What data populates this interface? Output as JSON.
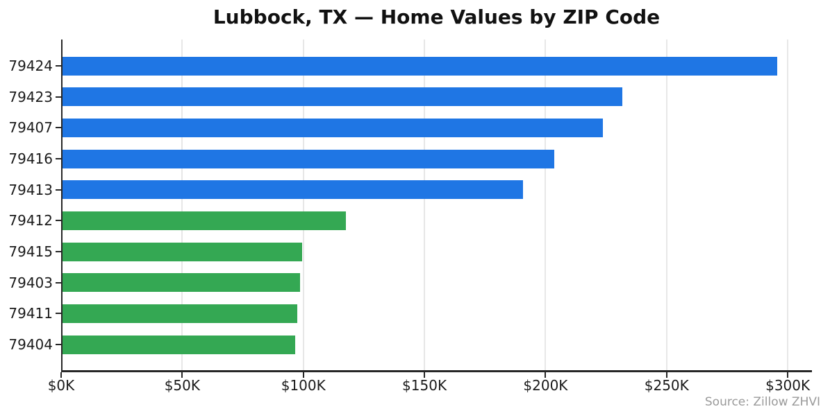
{
  "chart_data": {
    "type": "bar",
    "orientation": "horizontal",
    "title": "Lubbock, TX — Home Values by ZIP Code",
    "categories": [
      "79424",
      "79423",
      "79407",
      "79416",
      "79413",
      "79412",
      "79415",
      "79403",
      "79411",
      "79404"
    ],
    "values": [
      295,
      231,
      223,
      203,
      190,
      117,
      99,
      98,
      97,
      96
    ],
    "values_unit": "USD thousands",
    "bar_colors": [
      "#1f76e4",
      "#1f76e4",
      "#1f76e4",
      "#1f76e4",
      "#1f76e4",
      "#34a853",
      "#34a853",
      "#34a853",
      "#34a853",
      "#34a853"
    ],
    "xlim": [
      0,
      310
    ],
    "x_ticks": [
      {
        "value": 0,
        "label": "$0K"
      },
      {
        "value": 50,
        "label": "$50K"
      },
      {
        "value": 100,
        "label": "$100K"
      },
      {
        "value": 150,
        "label": "$150K"
      },
      {
        "value": 200,
        "label": "$200K"
      },
      {
        "value": 250,
        "label": "$250K"
      },
      {
        "value": 300,
        "label": "$300K"
      }
    ],
    "grid": "vertical",
    "legend": "none",
    "source_note": "Source: Zillow ZHVI",
    "colors": {
      "blue_top5": "#1f76e4",
      "green_bottom5": "#34a853",
      "gridline": "#e7e7e7",
      "axis": "#262626",
      "title_text": "#111111",
      "tick_text": "#1a1a1a",
      "source_text": "#9a9a9a"
    }
  }
}
